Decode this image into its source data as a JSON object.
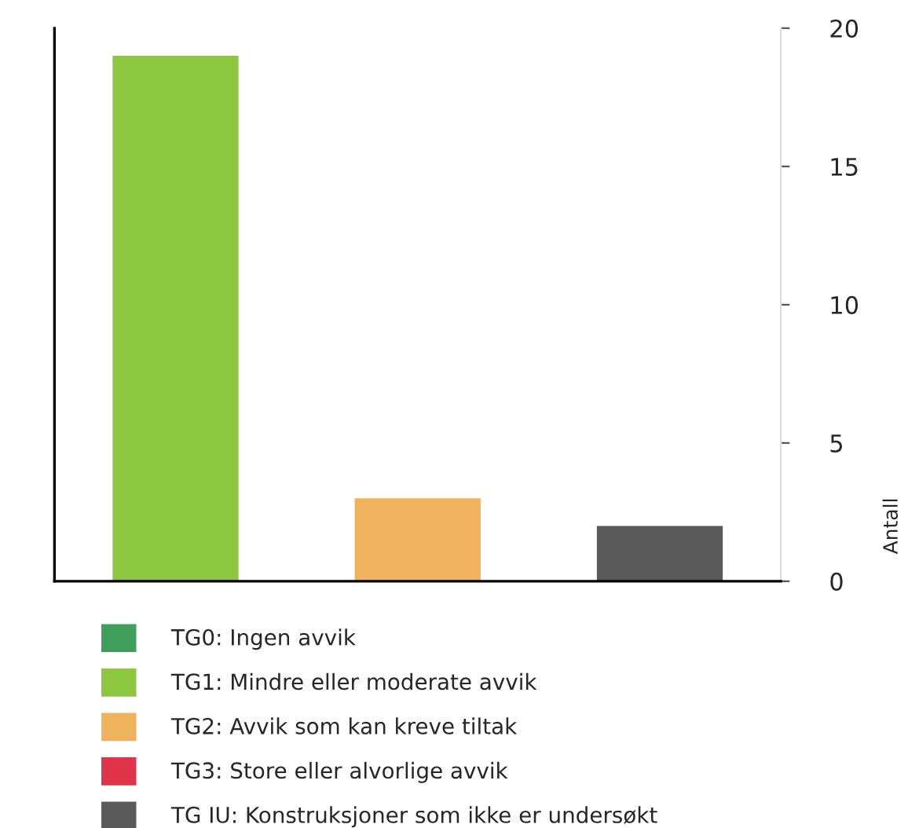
{
  "chart_data": {
    "type": "bar",
    "ylabel": "Antall",
    "categories": [
      null,
      null,
      null
    ],
    "series": [
      {
        "name": "TG0: Ingen avvik",
        "color": "#3f9e5a",
        "values": [
          null,
          null,
          null
        ]
      },
      {
        "name": "TG1: Mindre eller moderate avvik",
        "color": "#8dc63f",
        "values": [
          19,
          null,
          null
        ]
      },
      {
        "name": "TG2: Avvik som kan kreve tiltak",
        "color": "#f0b35d",
        "values": [
          null,
          3,
          null
        ]
      },
      {
        "name": "TG3: Store eller alvorlige avvik",
        "color": "#e0344a",
        "values": [
          null,
          null,
          null
        ]
      },
      {
        "name": "TG IU: Konstruksjoner som ikke er undersøkt",
        "color": "#5a5a5a",
        "values": [
          null,
          null,
          2
        ]
      }
    ],
    "ylim": [
      0,
      20
    ],
    "yticks": [
      0,
      5,
      10,
      15,
      20
    ],
    "grid": false,
    "legend": "bottom"
  }
}
